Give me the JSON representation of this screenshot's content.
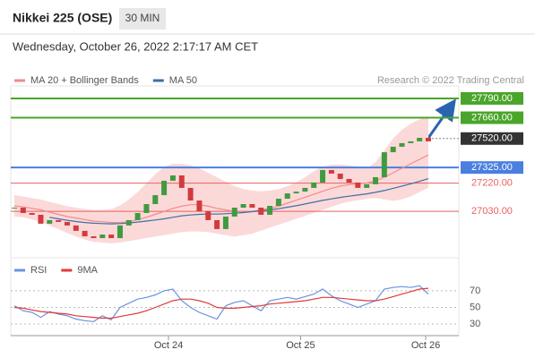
{
  "header": {
    "title": "Nikkei 225 (OSE)",
    "interval": "30 MIN",
    "timestamp": "Wednesday, October 26, 2022 2:17:17 AM CET",
    "source": "Research © 2022 Trading Central"
  },
  "chart_data": [
    {
      "type": "candlestick",
      "close": [
        27055,
        27019,
        27007,
        26947,
        26971,
        26959,
        26935,
        26899,
        26862,
        26850,
        26874,
        26850,
        26935,
        26971,
        27019,
        27079,
        27139,
        27236,
        27272,
        27188,
        27103,
        27031,
        26971,
        26911,
        26995,
        27055,
        27079,
        27055,
        27007,
        27067,
        27115,
        27151,
        27163,
        27188,
        27224,
        27308,
        27284,
        27248,
        27224,
        27188,
        27212,
        27260,
        27428,
        27465,
        27489,
        27501,
        27525,
        27501
      ],
      "up_color": "#3f9b3f",
      "down_color": "#d33b3b",
      "overlays": [
        {
          "name": "MA 20 + Bollinger Bands",
          "color": "#f28b8b",
          "band_color": "#fcd9d9",
          "values": [
            27067,
            27060,
            27050,
            27040,
            27025,
            27010,
            26995,
            26985,
            26975,
            26965,
            26960,
            26955,
            26955,
            26960,
            26975,
            26990,
            27010,
            27030,
            27050,
            27065,
            27075,
            27075,
            27065,
            27050,
            27040,
            27030,
            27025,
            27030,
            27040,
            27050,
            27065,
            27085,
            27105,
            27125,
            27145,
            27165,
            27185,
            27200,
            27210,
            27215,
            27220,
            27235,
            27260,
            27290,
            27320,
            27350,
            27380,
            27410
          ],
          "upper": [
            27140,
            27130,
            27120,
            27110,
            27095,
            27080,
            27065,
            27055,
            27045,
            27040,
            27040,
            27045,
            27070,
            27110,
            27160,
            27220,
            27280,
            27330,
            27350,
            27350,
            27340,
            27320,
            27290,
            27260,
            27230,
            27200,
            27180,
            27170,
            27165,
            27170,
            27180,
            27200,
            27225,
            27260,
            27300,
            27330,
            27345,
            27345,
            27340,
            27330,
            27320,
            27360,
            27440,
            27520,
            27580,
            27620,
            27650,
            27670
          ],
          "lower": [
            26995,
            26990,
            26975,
            26960,
            26935,
            26910,
            26885,
            26860,
            26840,
            26825,
            26820,
            26815,
            26820,
            26830,
            26840,
            26850,
            26860,
            26870,
            26880,
            26890,
            26895,
            26895,
            26890,
            26880,
            26870,
            26860,
            26870,
            26880,
            26900,
            26920,
            26940,
            26960,
            26980,
            27000,
            27020,
            27040,
            27060,
            27080,
            27095,
            27105,
            27115,
            27120,
            27110,
            27100,
            27110,
            27130,
            27160,
            27190
          ]
        },
        {
          "name": "MA 50",
          "color": "#3d6fa8",
          "values": [
            null,
            null,
            null,
            null,
            26990,
            26980,
            26970,
            26962,
            26955,
            26950,
            26948,
            26946,
            26948,
            26952,
            26958,
            26965,
            26972,
            26980,
            26990,
            27000,
            27006,
            27010,
            27012,
            27012,
            27014,
            27018,
            27022,
            27028,
            27034,
            27040,
            27048,
            27058,
            27068,
            27080,
            27092,
            27104,
            27114,
            27124,
            27132,
            27140,
            27148,
            27158,
            27170,
            27185,
            27200,
            27215,
            27232,
            27250
          ]
        }
      ],
      "levels": [
        {
          "value": 27790,
          "label": "27790.00",
          "color": "#4aa52a",
          "style": "solid",
          "box": true
        },
        {
          "value": 27660,
          "label": "27660.00",
          "color": "#4aa52a",
          "style": "solid",
          "box": true
        },
        {
          "value": 27520,
          "label": "27520.00",
          "color": "#333333",
          "style": "dotted",
          "box": true
        },
        {
          "value": 27325,
          "label": "27325.00",
          "color": "#4a7fe0",
          "style": "solid",
          "box": true
        },
        {
          "value": 27220,
          "label": "27220.00",
          "color": "#e86060",
          "style": "thin",
          "box": false
        },
        {
          "value": 27030,
          "label": "27030.00",
          "color": "#e86060",
          "style": "thin",
          "box": false
        }
      ],
      "ylim": [
        26760,
        27850
      ],
      "xlim": [
        0,
        47
      ]
    },
    {
      "type": "line",
      "series": [
        {
          "name": "RSI",
          "color": "#6a93e0",
          "values": [
            52,
            46,
            44,
            38,
            45,
            42,
            40,
            36,
            34,
            33,
            40,
            35,
            50,
            55,
            60,
            62,
            65,
            70,
            72,
            58,
            50,
            44,
            40,
            36,
            52,
            56,
            58,
            52,
            46,
            58,
            60,
            62,
            60,
            63,
            66,
            72,
            64,
            58,
            54,
            50,
            54,
            58,
            72,
            74,
            75,
            74,
            76,
            66
          ]
        },
        {
          "name": "9MA",
          "color": "#e03a3a",
          "values": [
            50,
            49,
            47,
            45,
            44,
            43,
            42,
            40,
            39,
            38,
            37,
            37,
            39,
            41,
            43,
            46,
            50,
            54,
            58,
            60,
            60,
            58,
            55,
            50,
            49,
            49,
            50,
            51,
            52,
            54,
            55,
            56,
            57,
            58,
            60,
            62,
            62,
            61,
            60,
            59,
            58,
            58,
            60,
            63,
            66,
            69,
            72,
            73
          ]
        }
      ],
      "ylim": [
        15,
        86
      ],
      "yticks": [
        30,
        50,
        70
      ],
      "xlim": [
        0,
        47
      ],
      "xticks": [
        {
          "value": 17.5,
          "label": "Oct 24"
        },
        {
          "value": 32.5,
          "label": "Oct 25"
        },
        {
          "value": 46.7,
          "label": "Oct 26"
        }
      ]
    }
  ]
}
